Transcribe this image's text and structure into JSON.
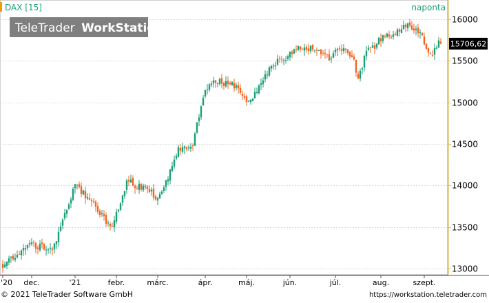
{
  "header": {
    "symbol_label": "DAX [15]",
    "period_label": "naponta",
    "watermark_brand": "TeleTrader",
    "watermark_product": "WorkStation",
    "marker_color": "#f29a00"
  },
  "footer": {
    "copyright": "© 2021  TeleTrader Software GmbH",
    "url": "https://workstation.teletrader.com"
  },
  "colors": {
    "up": "#1a9e78",
    "down": "#f26522",
    "header_text": "#1a9e78",
    "grid": "#d8d8d8",
    "watermark_bg": "#7f7f7f",
    "price_box_bg": "#000000",
    "price_box_text": "#ffffff",
    "axis_line": "#e8c040"
  },
  "chart_data": {
    "type": "candlestick",
    "title": "DAX [15]",
    "period": "naponta",
    "ylim": [
      12950,
      16150
    ],
    "y_ticks": [
      13000,
      13500,
      14000,
      14500,
      15000,
      15500,
      16000
    ],
    "y_tick_labels": [
      "13000",
      "13500",
      "14000",
      "14500",
      "15000",
      "15500",
      "16000"
    ],
    "x_ticks": [
      {
        "label": "'20",
        "index": 0
      },
      {
        "label": "dec.",
        "index": 14
      },
      {
        "label": "'21",
        "index": 35
      },
      {
        "label": "febr.",
        "index": 55
      },
      {
        "label": "márc.",
        "index": 75
      },
      {
        "label": "ápr.",
        "index": 98
      },
      {
        "label": "máj.",
        "index": 118
      },
      {
        "label": "jún.",
        "index": 139
      },
      {
        "label": "júl.",
        "index": 161
      },
      {
        "label": "aug.",
        "index": 183
      },
      {
        "label": "szept.",
        "index": 204
      }
    ],
    "last_price": 15706.62,
    "last_price_label": "15706,62",
    "key_points": [
      [
        0,
        13050
      ],
      [
        14,
        13300
      ],
      [
        24,
        13200
      ],
      [
        35,
        14000
      ],
      [
        45,
        13750
      ],
      [
        52,
        13500
      ],
      [
        55,
        13650
      ],
      [
        60,
        14050
      ],
      [
        70,
        13950
      ],
      [
        75,
        13850
      ],
      [
        80,
        14100
      ],
      [
        85,
        14450
      ],
      [
        92,
        14500
      ],
      [
        98,
        15150
      ],
      [
        103,
        15250
      ],
      [
        112,
        15200
      ],
      [
        118,
        15000
      ],
      [
        122,
        15100
      ],
      [
        128,
        15350
      ],
      [
        133,
        15500
      ],
      [
        138,
        15550
      ],
      [
        143,
        15650
      ],
      [
        150,
        15650
      ],
      [
        158,
        15550
      ],
      [
        165,
        15650
      ],
      [
        170,
        15500
      ],
      [
        172,
        15300
      ],
      [
        176,
        15600
      ],
      [
        185,
        15800
      ],
      [
        192,
        15850
      ],
      [
        196,
        15950
      ],
      [
        203,
        15800
      ],
      [
        207,
        15550
      ],
      [
        210,
        15700
      ],
      [
        212,
        15707
      ]
    ],
    "volatility": 55,
    "seed": 20210930
  }
}
